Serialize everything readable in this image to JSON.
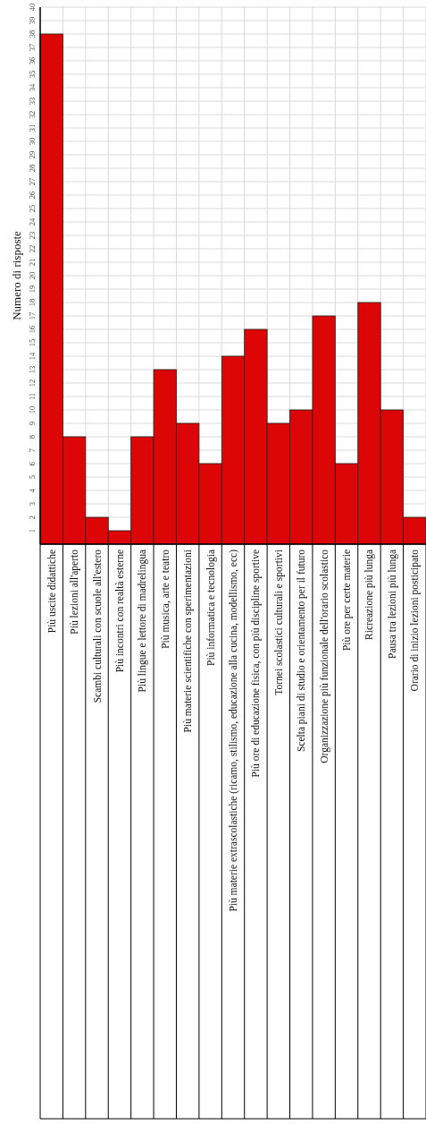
{
  "chart_data": {
    "type": "bar",
    "ylabel": "Numero di risposte",
    "categories": [
      "Più uscite didattiche",
      "Più lezioni all'aperto",
      "Scambi culturali con scuole all'estero",
      "Più incontri con realtà esterne",
      "Più lingue e lettore di madrelingua",
      "Più musica, arte e teatro",
      "Più materie scientifiche con sperimentazioni",
      "Più informatica e tecnologia",
      "Più materie extrascolastiche (ricamo, stilismo, educazione alla cucina, modellismo, ecc)",
      "Più ore di educazione fisica, con più discipline sportive",
      "Tornei scolastici culturali e sportivi",
      "Scelta piani di studio e orientamento per il futuro",
      "Organizzazione più funzionale dell'orario scolastico",
      "Più ore per certe materie",
      "Ricreazione più lunga",
      "Pausa tra lezioni più lunga",
      "Orario di inizio lezioni posticipato"
    ],
    "values": [
      38,
      8,
      2,
      1,
      8,
      13,
      9,
      6,
      14,
      16,
      9,
      10,
      17,
      6,
      18,
      10,
      2
    ],
    "color": "#dd0606",
    "ylim": [
      0,
      40
    ],
    "yticks": [
      1,
      2,
      3,
      4,
      5,
      6,
      7,
      8,
      9,
      10,
      11,
      12,
      13,
      14,
      15,
      16,
      17,
      18,
      19,
      20,
      21,
      22,
      23,
      24,
      25,
      26,
      27,
      28,
      29,
      30,
      31,
      32,
      33,
      34,
      35,
      36,
      37,
      38,
      39,
      40
    ],
    "grid": true
  }
}
